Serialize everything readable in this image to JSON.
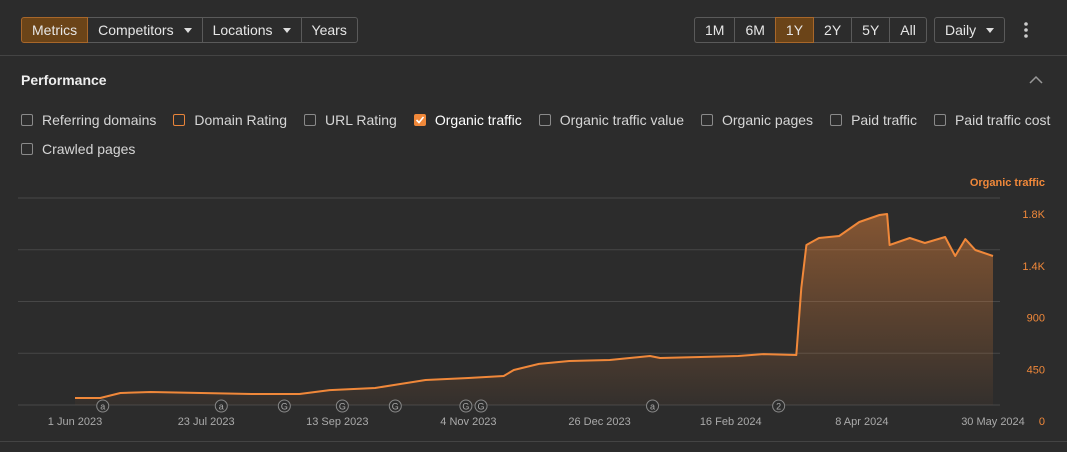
{
  "toolbar": {
    "tabs": [
      {
        "label": "Metrics",
        "active": true
      },
      {
        "label": "Competitors",
        "menu": true
      },
      {
        "label": "Locations",
        "menu": true
      },
      {
        "label": "Years"
      }
    ],
    "ranges": [
      {
        "label": "1M"
      },
      {
        "label": "6M"
      },
      {
        "label": "1Y",
        "active": true
      },
      {
        "label": "2Y"
      },
      {
        "label": "5Y"
      },
      {
        "label": "All"
      }
    ],
    "interval": {
      "label": "Daily",
      "menu": true
    }
  },
  "section": {
    "title": "Performance",
    "metrics": [
      {
        "label": "Referring domains",
        "checked": false
      },
      {
        "label": "Domain Rating",
        "checked": false,
        "color": "#e8843a"
      },
      {
        "label": "URL Rating",
        "checked": false
      },
      {
        "label": "Organic traffic",
        "checked": true,
        "color": "#f0883a"
      },
      {
        "label": "Organic traffic value",
        "checked": false
      },
      {
        "label": "Organic pages",
        "checked": false
      },
      {
        "label": "Paid traffic",
        "checked": false
      },
      {
        "label": "Paid traffic cost",
        "checked": false
      },
      {
        "label": "Crawled pages",
        "checked": false
      }
    ]
  },
  "chart_data": {
    "type": "area",
    "x": [
      0,
      10,
      18,
      30,
      50,
      70,
      89,
      101,
      119,
      129,
      139,
      156,
      170,
      174,
      184,
      196,
      212,
      228,
      232,
      248,
      263,
      273,
      286,
      288,
      290,
      295,
      303,
      311,
      319,
      322,
      323,
      331,
      337,
      345,
      349,
      353,
      357,
      364
    ],
    "series": [
      {
        "name": "Organic traffic",
        "color": "#f0883a",
        "values": [
          61,
          61,
          104,
          113,
          104,
          96,
          96,
          130,
          148,
          183,
          217,
          235,
          252,
          304,
          357,
          383,
          391,
          426,
          409,
          417,
          426,
          443,
          435,
          1017,
          1391,
          1452,
          1470,
          1591,
          1652,
          1661,
          1391,
          1452,
          1409,
          1461,
          1296,
          1443,
          1348,
          1296
        ]
      }
    ],
    "xlim": [
      0,
      364
    ],
    "xticks": [
      {
        "value": 0,
        "label": "1 Jun 2023"
      },
      {
        "value": 52,
        "label": "23 Jul 2023"
      },
      {
        "value": 104,
        "label": "13 Sep 2023"
      },
      {
        "value": 156,
        "label": "4 Nov 2023"
      },
      {
        "value": 208,
        "label": "26 Dec 2023"
      },
      {
        "value": 260,
        "label": "16 Feb 2024"
      },
      {
        "value": 312,
        "label": "8 Apr 2024"
      },
      {
        "value": 364,
        "label": "30 May 2024"
      }
    ],
    "ylim": [
      0,
      1800
    ],
    "yticks": [
      0,
      450,
      900,
      {
        "value": 1350,
        "label": "1.4K"
      },
      {
        "value": 1800,
        "label": "1.8K"
      }
    ],
    "grid": true,
    "annotations": [
      {
        "x": 11,
        "label": "a"
      },
      {
        "x": 58,
        "label": "a"
      },
      {
        "x": 83,
        "label": "G"
      },
      {
        "x": 106,
        "label": "G"
      },
      {
        "x": 127,
        "label": "G"
      },
      {
        "x": 155,
        "label": "G"
      },
      {
        "x": 161,
        "label": "G"
      },
      {
        "x": 229,
        "label": "a"
      },
      {
        "x": 279,
        "label": "2"
      }
    ]
  }
}
